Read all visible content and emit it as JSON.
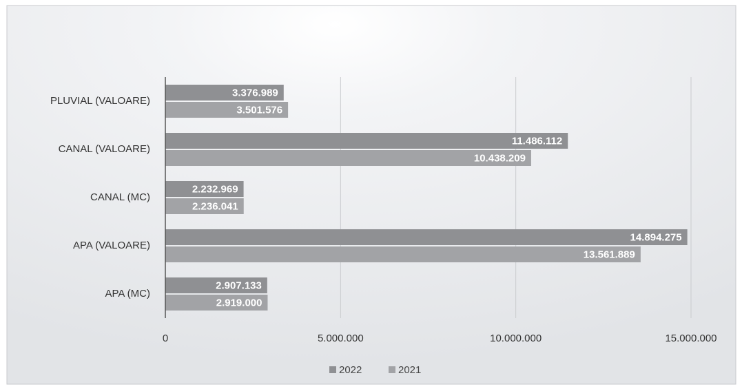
{
  "chart_data": {
    "type": "hbar",
    "categories": [
      "PLUVIAL (VALOARE)",
      "CANAL (VALOARE)",
      "CANAL (MC)",
      "APA (VALOARE)",
      "APA (MC)"
    ],
    "series": [
      {
        "name": "2022",
        "color": "#8f9093",
        "values": [
          3376989,
          11486112,
          2232969,
          14894275,
          2907133
        ],
        "value_labels": [
          "3.376.989",
          "11.486.112",
          "2.232.969",
          "14.894.275",
          "2.907.133"
        ]
      },
      {
        "name": "2021",
        "color": "#a2a3a6",
        "values": [
          3501576,
          10438209,
          2236041,
          13561889,
          2919000
        ],
        "value_labels": [
          "3.501.576",
          "10.438.209",
          "2.236.041",
          "13.561.889",
          "2.919.000"
        ]
      }
    ],
    "xlim": [
      0,
      15000000
    ],
    "xticks": [
      0,
      {
        "value": 5000000,
        "label": "5.000.000"
      },
      {
        "value": 10000000,
        "label": "10.000.000"
      },
      {
        "value": 15000000,
        "label": "15.000.000"
      }
    ],
    "grid": true,
    "legend": "bottom"
  }
}
